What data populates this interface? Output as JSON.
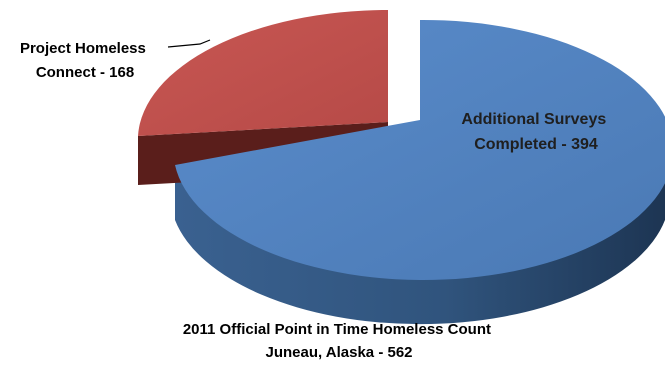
{
  "chart_data": {
    "type": "pie",
    "slices": [
      {
        "label_lines": [
          "Additional Surveys",
          "Completed - 394"
        ],
        "category": "Additional Surveys Completed",
        "value": 394,
        "color": "#4f81bd",
        "exploded": false
      },
      {
        "label_lines": [
          "Project Homeless",
          "Connect - 168"
        ],
        "category": "Project Homeless Connect",
        "value": 168,
        "color": "#c0504d",
        "exploded": true
      }
    ],
    "caption_lines": [
      "2011 Official Point in Time Homeless Count",
      "Juneau, Alaska - 562"
    ],
    "legend": "none",
    "style": "3d"
  }
}
